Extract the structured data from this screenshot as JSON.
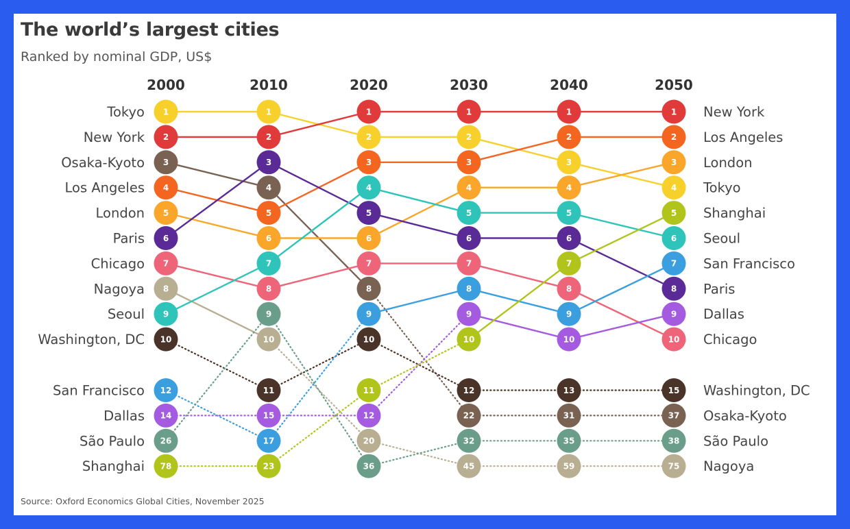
{
  "header": {
    "title": "The world’s largest cities",
    "subtitle": "Ranked by nominal GDP, US$"
  },
  "footer": {
    "source": "Source: Oxford Economics Global Cities, November 2025"
  },
  "chart_data": {
    "type": "bump",
    "title": "The world’s largest cities",
    "subtitle": "Ranked by nominal GDP, US$",
    "years": [
      "2000",
      "2010",
      "2020",
      "2030",
      "2040",
      "2050"
    ],
    "left_labels": [
      "Tokyo",
      "New York",
      "Osaka-Kyoto",
      "Los Angeles",
      "London",
      "Paris",
      "Chicago",
      "Nagoya",
      "Seoul",
      "Washington, DC",
      "San Francisco",
      "Dallas",
      "São Paulo",
      "Shanghai"
    ],
    "right_labels": [
      "New York",
      "Los Angeles",
      "London",
      "Tokyo",
      "Shanghai",
      "Seoul",
      "San Francisco",
      "Paris",
      "Dallas",
      "Chicago",
      "Washington, DC",
      "Osaka-Kyoto",
      "São Paulo",
      "Nagoya"
    ],
    "top_n": 10,
    "series": [
      {
        "name": "Tokyo",
        "color": "#f7d02c",
        "ranks": [
          1,
          1,
          2,
          2,
          3,
          4
        ]
      },
      {
        "name": "New York",
        "color": "#e03a3a",
        "ranks": [
          2,
          2,
          1,
          1,
          1,
          1
        ]
      },
      {
        "name": "Osaka-Kyoto",
        "color": "#7a6253",
        "ranks": [
          3,
          4,
          8,
          22,
          31,
          37
        ]
      },
      {
        "name": "Los Angeles",
        "color": "#f4661f",
        "ranks": [
          4,
          5,
          3,
          3,
          2,
          2
        ]
      },
      {
        "name": "London",
        "color": "#f9a62b",
        "ranks": [
          5,
          6,
          6,
          4,
          4,
          3
        ]
      },
      {
        "name": "Paris",
        "color": "#5a2b96",
        "ranks": [
          6,
          3,
          5,
          6,
          6,
          8
        ]
      },
      {
        "name": "Chicago",
        "color": "#ee6478",
        "ranks": [
          7,
          8,
          7,
          7,
          8,
          10
        ]
      },
      {
        "name": "Nagoya",
        "color": "#b8ae92",
        "ranks": [
          8,
          10,
          20,
          45,
          59,
          75
        ]
      },
      {
        "name": "Seoul",
        "color": "#2ec4b9",
        "ranks": [
          9,
          7,
          4,
          5,
          5,
          6
        ]
      },
      {
        "name": "Washington, DC",
        "color": "#4a3328",
        "ranks": [
          10,
          11,
          10,
          12,
          13,
          15
        ]
      },
      {
        "name": "San Francisco",
        "color": "#3b9fdf",
        "ranks": [
          12,
          17,
          9,
          8,
          9,
          7
        ]
      },
      {
        "name": "Dallas",
        "color": "#a45be0",
        "ranks": [
          14,
          15,
          12,
          9,
          10,
          9
        ]
      },
      {
        "name": "São Paulo",
        "color": "#6a9e8a",
        "ranks": [
          26,
          9,
          36,
          32,
          35,
          38
        ]
      },
      {
        "name": "Shanghai",
        "color": "#b0c41c",
        "ranks": [
          78,
          23,
          11,
          10,
          7,
          5
        ]
      }
    ]
  }
}
